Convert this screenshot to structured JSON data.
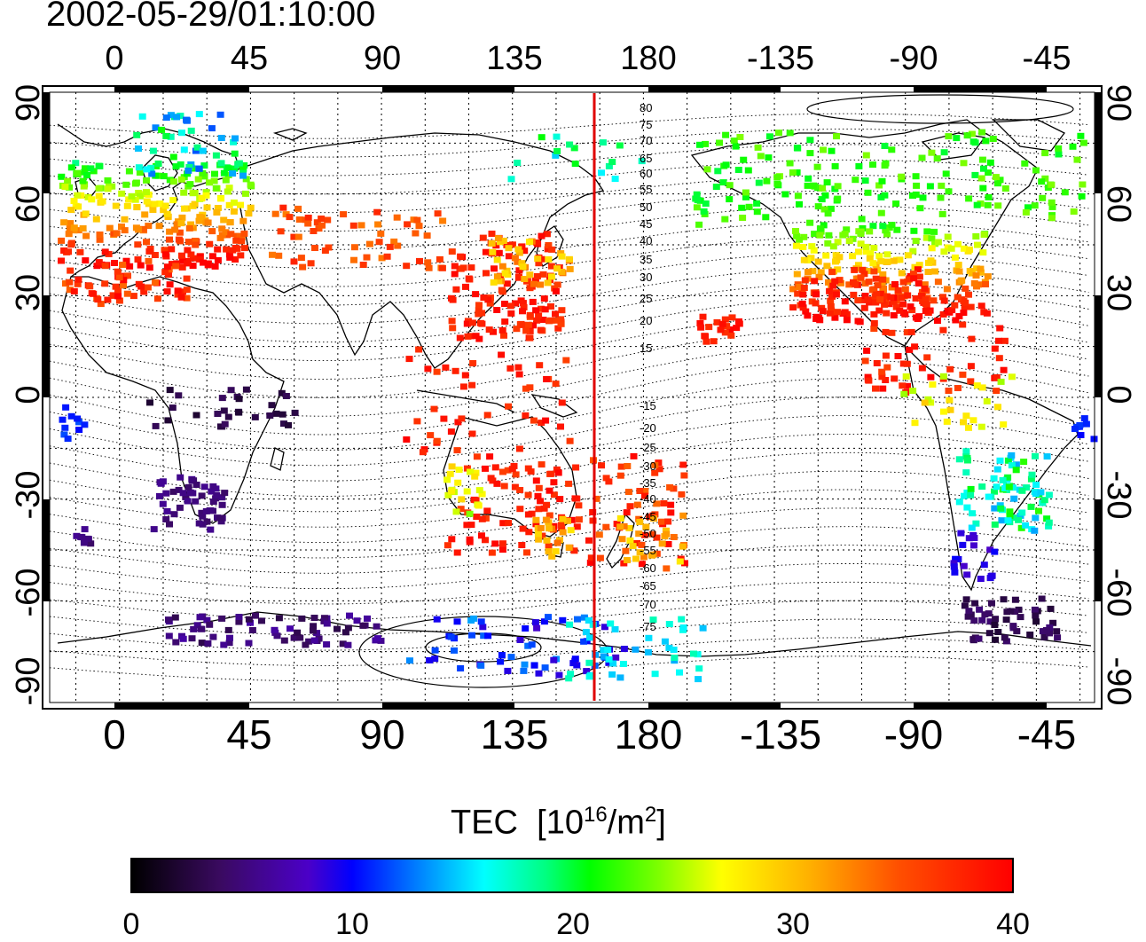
{
  "title": "2002-05-29/01:10:00",
  "axes": {
    "lon_ticks": [
      "0",
      "45",
      "90",
      "135",
      "180",
      "-135",
      "-90",
      "-45"
    ],
    "lat_ticks": [
      "90",
      "60",
      "30",
      "0",
      "-30",
      "-60",
      "-90"
    ]
  },
  "map": {
    "lon_range": [
      -24,
      335
    ],
    "lat_range": [
      -90,
      90
    ],
    "meridian_marker_lon": 162,
    "marker_color": "#e00000",
    "magnetic_lat_labels": [
      "80",
      "75",
      "70",
      "65",
      "60",
      "55",
      "50",
      "45",
      "40",
      "35",
      "30",
      "25",
      "20",
      "15",
      "-15",
      "-20",
      "-25",
      "-30",
      "-35",
      "-40",
      "-45",
      "-50",
      "-55",
      "-60",
      "-65",
      "-70",
      "-75"
    ]
  },
  "colorbar": {
    "label": "TEC",
    "unit_prefix": "10",
    "unit_exp": "16",
    "unit_suffix": "/m",
    "unit_exp2": "2",
    "ticks": [
      "0",
      "10",
      "20",
      "30",
      "40"
    ],
    "min": 0,
    "max": 40
  }
}
